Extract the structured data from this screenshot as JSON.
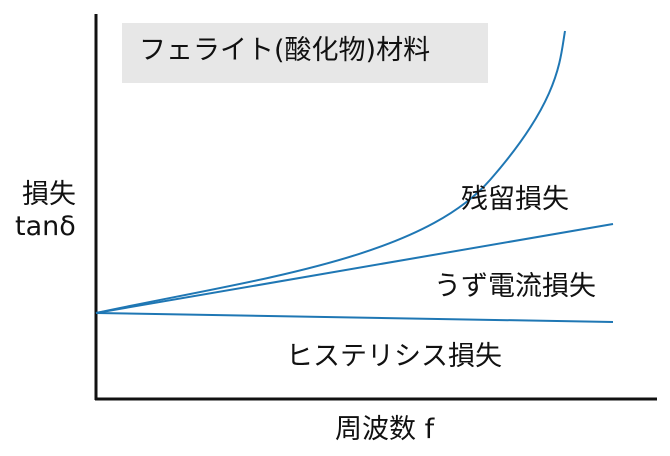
{
  "title": "フェライト(酸化物)材料",
  "y_axis": {
    "line1": "損失",
    "line2": "tanδ"
  },
  "x_axis": {
    "label": "周波数 f"
  },
  "curves": {
    "residual": {
      "label": "残留損失",
      "color": "#1f77b4"
    },
    "eddy": {
      "label": "うず電流損失",
      "color": "#1f77b4"
    },
    "hysteresis": {
      "label": "ヒステリシス損失",
      "color": "#1f77b4"
    }
  },
  "colors": {
    "axis": "#111111",
    "title_box": "#e7e7e7"
  }
}
